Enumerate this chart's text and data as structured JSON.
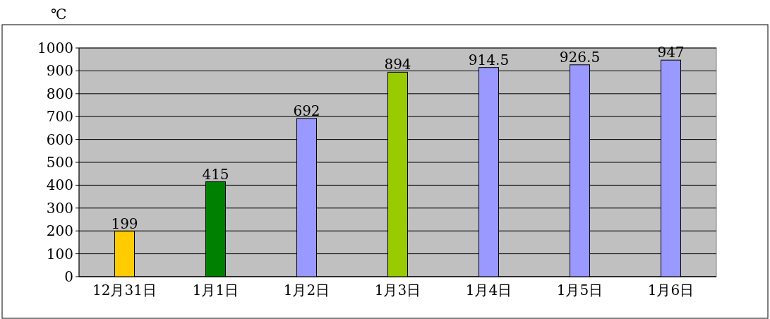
{
  "chart_data": {
    "type": "bar",
    "ylabel": "℃",
    "categories": [
      "12月31日",
      "1月1日",
      "1月2日",
      "1月3日",
      "1月4日",
      "1月5日",
      "1月6日"
    ],
    "values": [
      199,
      415,
      692,
      894,
      914.5,
      926.5,
      947
    ],
    "colors": [
      "#ffcc00",
      "#008000",
      "#9999ff",
      "#99cc00",
      "#9999ff",
      "#9999ff",
      "#9999ff"
    ],
    "ylim": [
      0,
      1000
    ],
    "yticks": [
      0,
      100,
      200,
      300,
      400,
      500,
      600,
      700,
      800,
      900,
      1000
    ],
    "grid": "y",
    "data_labels": true
  }
}
